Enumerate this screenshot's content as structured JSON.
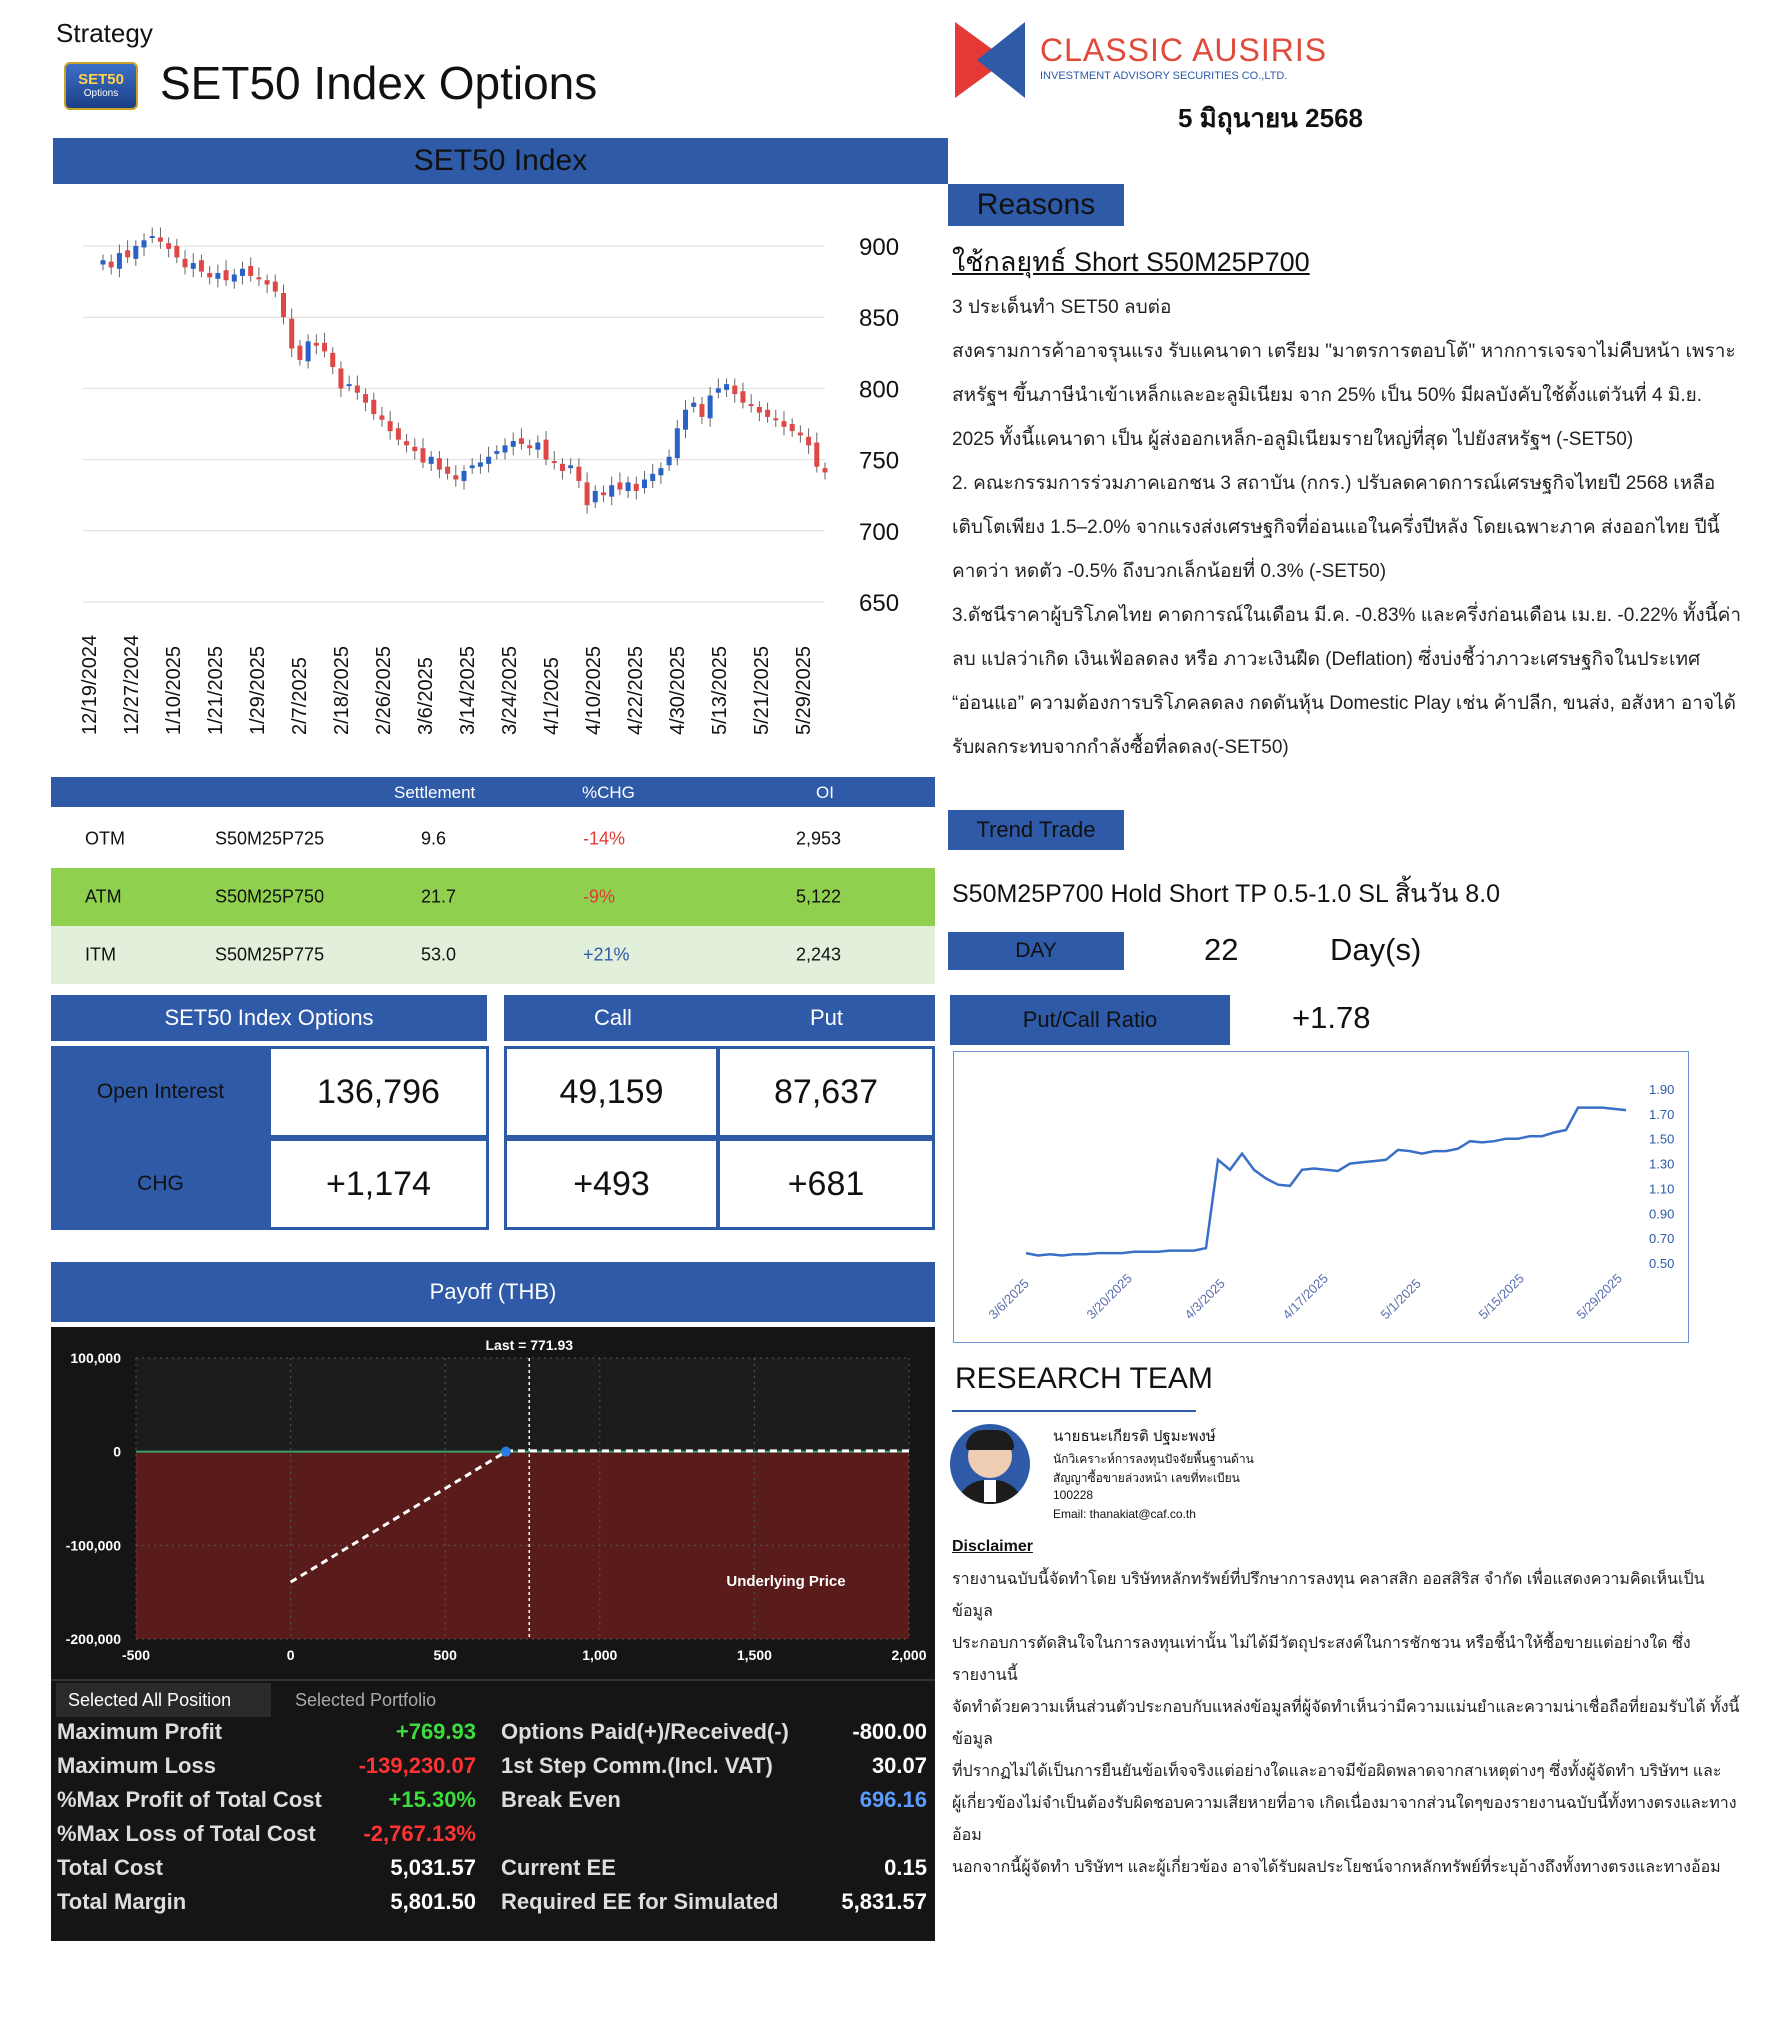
{
  "header": {
    "strategy": "Strategy",
    "title": "SET50 Index Options",
    "logo_text": "SET50",
    "logo_sub": "Options",
    "brand_name": "CLASSIC AUSIRIS",
    "brand_sub": "INVESTMENT ADVISORY SECURITIES CO.,LTD.",
    "date": "5 มิถุนายน 2568"
  },
  "index_panel": {
    "title": "SET50 Index"
  },
  "chart_data": [
    {
      "type": "candlestick",
      "title": "SET50 Index",
      "yticks": [
        900,
        850,
        800,
        750,
        700,
        650
      ],
      "ylim": [
        650,
        910
      ],
      "xtick_labels": [
        "12/19/2024",
        "12/27/2024",
        "1/10/2025",
        "1/21/2025",
        "1/29/2025",
        "2/7/2025",
        "2/18/2025",
        "2/26/2025",
        "3/6/2025",
        "3/14/2025",
        "3/24/2025",
        "4/1/2025",
        "4/10/2025",
        "4/22/2025",
        "4/30/2025",
        "5/13/2025",
        "5/21/2025",
        "5/29/2025"
      ],
      "closes": [
        890,
        885,
        895,
        892,
        900,
        904,
        907,
        903,
        898,
        892,
        885,
        888,
        882,
        878,
        881,
        876,
        880,
        884,
        879,
        877,
        873,
        868,
        850,
        828,
        820,
        833,
        830,
        826,
        815,
        800,
        803,
        797,
        790,
        782,
        778,
        770,
        764,
        760,
        756,
        748,
        752,
        743,
        740,
        736,
        742,
        746,
        748,
        752,
        756,
        760,
        763,
        761,
        758,
        762,
        750,
        748,
        742,
        746,
        735,
        718,
        728,
        725,
        732,
        729,
        734,
        728,
        736,
        740,
        744,
        752,
        772,
        785,
        790,
        780,
        795,
        800,
        803,
        796,
        790,
        788,
        783,
        780,
        778,
        773,
        770,
        767,
        760,
        745,
        741
      ]
    },
    {
      "type": "line",
      "title": "",
      "y_tick_labels": [
        "1.90",
        "1.70",
        "1.50",
        "1.30",
        "1.10",
        "0.90",
        "0.70",
        "0.50"
      ],
      "ylim": [
        0.45,
        1.95
      ],
      "x_tick_labels": [
        "3/6/2025",
        "3/20/2025",
        "4/3/2025",
        "4/17/2025",
        "5/1/2025",
        "5/15/2025",
        "5/29/2025"
      ],
      "values": [
        0.58,
        0.56,
        0.57,
        0.56,
        0.57,
        0.57,
        0.58,
        0.58,
        0.58,
        0.59,
        0.59,
        0.59,
        0.6,
        0.6,
        0.6,
        0.62,
        1.33,
        1.25,
        1.38,
        1.25,
        1.18,
        1.13,
        1.12,
        1.25,
        1.26,
        1.25,
        1.24,
        1.3,
        1.31,
        1.32,
        1.33,
        1.41,
        1.4,
        1.38,
        1.4,
        1.4,
        1.42,
        1.48,
        1.47,
        1.48,
        1.5,
        1.5,
        1.52,
        1.52,
        1.55,
        1.57,
        1.75,
        1.75,
        1.75,
        1.74,
        1.73
      ]
    },
    {
      "type": "line",
      "title": "",
      "xlabel": "Underlying Price",
      "x_tick_labels": [
        "-500",
        "0",
        "500",
        "1,000",
        "1,500",
        "2,000"
      ],
      "y_tick_labels": [
        "100,000",
        "0",
        "-100,000",
        "-200,000"
      ],
      "xlim": [
        -500,
        2000
      ],
      "ylim": [
        -200000,
        100000
      ],
      "last_label": "Last = 771.93",
      "last_x": 771.93,
      "points": [
        [
          0,
          -139230
        ],
        [
          696.16,
          0
        ],
        [
          700,
          770
        ],
        [
          2000,
          770
        ]
      ]
    }
  ],
  "options_table": {
    "headers": [
      "",
      "",
      "Settlement",
      "%CHG",
      "OI"
    ],
    "rows": [
      {
        "type": "OTM",
        "series": "S50M25P725",
        "settlement": "9.6",
        "chg": "-14%",
        "oi": "2,953",
        "bg": "#ffffff",
        "chg_color": "#e53935"
      },
      {
        "type": "ATM",
        "series": "S50M25P750",
        "settlement": "21.7",
        "chg": "-9%",
        "oi": "5,122",
        "bg": "#8fd14f",
        "chg_color": "#e53935"
      },
      {
        "type": "ITM",
        "series": "S50M25P775",
        "settlement": "53.0",
        "chg": "+21%",
        "oi": "2,243",
        "bg": "#e2efda",
        "chg_color": "#2e5aa8"
      }
    ]
  },
  "oi_panel": {
    "label": "SET50 Index Options",
    "call_label": "Call",
    "put_label": "Put",
    "oi_label": "Open Interest",
    "chg_label": "CHG",
    "oi_total": "136,796",
    "oi_call": "49,159",
    "oi_put": "87,637",
    "chg_total": "+1,174",
    "chg_call": "+493",
    "chg_put": "+681"
  },
  "payoff": {
    "title": "Payoff (THB)",
    "tab_active": "Selected All Position",
    "tab_inactive": "Selected Portfolio",
    "stats_left": [
      {
        "label": "Maximum Profit",
        "value": "+769.93",
        "color": "#3ddc3d"
      },
      {
        "label": "Maximum Loss",
        "value": "-139,230.07",
        "color": "#ff3333"
      },
      {
        "label": "%Max Profit of Total Cost",
        "value": "+15.30%",
        "color": "#3ddc3d"
      },
      {
        "label": "%Max Loss of Total Cost",
        "value": "-2,767.13%",
        "color": "#ff3333"
      },
      {
        "label": "Total Cost",
        "value": "5,031.57",
        "color": "#ffffff"
      },
      {
        "label": "Total Margin",
        "value": "5,801.50",
        "color": "#ffffff"
      }
    ],
    "stats_right": [
      {
        "label": "Options Paid(+)/Received(-)",
        "value": "-800.00",
        "color": "#ffffff"
      },
      {
        "label": "1st Step Comm.(Incl. VAT)",
        "value": "30.07",
        "color": "#ffffff"
      },
      {
        "label": "Break Even",
        "value": "696.16",
        "color": "#5b9bff"
      },
      {
        "label": "",
        "value": "",
        "color": "#ffffff"
      },
      {
        "label": "Current EE",
        "value": "0.15",
        "color": "#ffffff"
      },
      {
        "label": "Required EE for Simulated",
        "value": "5,831.57",
        "color": "#ffffff"
      }
    ]
  },
  "reasons": {
    "title": "Reasons",
    "strategy_line": "ใช้กลยุทธ์ Short S50M25P700",
    "paragraphs": [
      "3 ประเด็นทำ SET50 ลบต่อ",
      "สงครามการค้าอาจรุนแรง รับแคนาดา เตรียม \"มาตรการตอบโต้\" หากการเจรจาไม่คืบหน้า เพราะสหรัฐฯ ขึ้นภาษีนำเข้าเหล็กและอะลูมิเนียม จาก 25% เป็น 50% มีผลบังคับใช้ตั้งแต่วันที่ 4 มิ.ย. 2025 ทั้งนี้แคนาดา เป็น ผู้ส่งออกเหล็ก-อลูมิเนียมรายใหญ่ที่สุด ไปยังสหรัฐฯ (-SET50)",
      "2. คณะกรรมการร่วมภาคเอกชน 3 สถาบัน (กกร.) ปรับลดคาดการณ์เศรษฐกิจไทยปี 2568 เหลือเติบโตเพียง 1.5–2.0% จากแรงส่งเศรษฐกิจที่อ่อนแอในครึ่งปีหลัง โดยเฉพาะภาค ส่งออกไทย ปีนี้คาดว่า หดตัว -0.5% ถึงบวกเล็กน้อยที่ 0.3% (-SET50)",
      "3.ดัชนีราคาผู้บริโภคไทย คาดการณ์ในเดือน มี.ค. -0.83% และครึ่งก่อนเดือน เม.ย. -0.22% ทั้งนี้ค่าลบ แปลว่าเกิด เงินเฟ้อลดลง หรือ ภาวะเงินฝืด (Deflation) ซึ่งบ่งชี้ว่าภาวะเศรษฐกิจในประเทศ “อ่อนแอ” ความต้องการบริโภคลดลง กดดันหุ้น Domestic Play เช่น ค้าปลีก, ขนส่ง, อสังหา อาจได้รับผลกระทบจากกำลังซื้อที่ลดลง(-SET50)"
    ]
  },
  "trend": {
    "title": "Trend Trade",
    "line": "S50M25P700 Hold Short TP 0.5-1.0 SL สิ้นวัน 8.0",
    "day_label": "DAY",
    "day_value": "22",
    "day_unit": "Day(s)",
    "pcr_label": "Put/Call Ratio",
    "pcr_value": "+1.78"
  },
  "research": {
    "title": "RESEARCH TEAM",
    "name": "นายธนะเกียรติ ปฐมะพงษ์",
    "role1": "นักวิเคราะห์การลงทุนปัจจัยพื้นฐานด้าน",
    "role2": "สัญญาซื้อขายล่วงหน้า เลขที่ทะเบียน",
    "reg": "100228",
    "email": "Email: thanakiat@caf.co.th"
  },
  "disclaimer": {
    "title": "Disclaimer",
    "lines": [
      "รายงานฉบับนี้จัดทำโดย บริษัทหลักทรัพย์ที่ปรึกษาการลงทุน คลาสสิก ออสสิริส จำกัด เพื่อแสดงความคิดเห็นเป็นข้อมูล",
      "ประกอบการตัดสินใจในการลงทุนเท่านั้น ไม่ได้มีวัตถุประสงค์ในการชักชวน หรือชี้นำให้ซื้อขายแต่อย่างใด ซึ่งรายงานนี้",
      "จัดทำด้วยความเห็นส่วนตัวประกอบกับแหล่งข้อมูลที่ผู้จัดทำเห็นว่ามีความแม่นยำและความน่าเชื่อถือที่ยอมรับได้ ทั้งนี้ข้อมูล",
      "ที่ปรากฏไม่ได้เป็นการยืนยันข้อเท็จจริงแต่อย่างใดและอาจมีข้อผิดพลาดจากสาเหตุต่างๆ ซึ่งทั้งผู้จัดทำ บริษัทฯ และ",
      "ผู้เกี่ยวข้องไม่จำเป็นต้องรับผิดชอบความเสียหายที่อาจ เกิดเนื่องมาจากส่วนใดๆของรายงานฉบับนี้ทั้งทางตรงและทางอ้อม",
      "นอกจากนี้ผู้จัดทำ บริษัทฯ และผู้เกี่ยวข้อง อาจได้รับผลประโยชน์จากหลักทรัพย์ที่ระบุอ้างถึงทั้งทางตรงและทางอ้อม"
    ]
  }
}
